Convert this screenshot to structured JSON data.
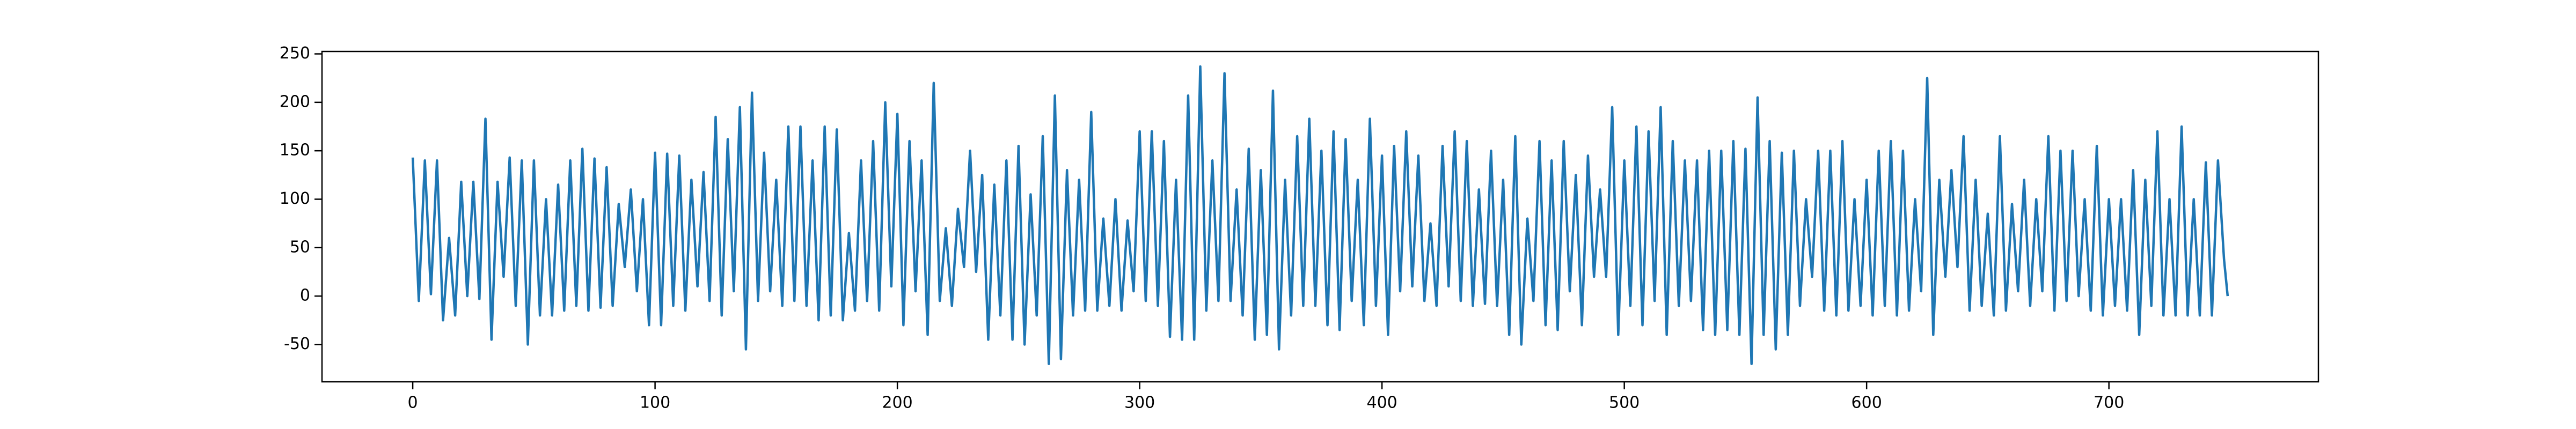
{
  "chart_data": {
    "type": "line",
    "color": "#1f77b4",
    "x": [
      0,
      2.5,
      5,
      7.5,
      10,
      12.5,
      15,
      17.5,
      20,
      22.5,
      25,
      27.5,
      30,
      32.5,
      35,
      37.5,
      40,
      42.5,
      45,
      47.5,
      50,
      52.5,
      55,
      57.5,
      60,
      62.5,
      65,
      67.5,
      70,
      72.5,
      75,
      77.5,
      80,
      82.5,
      85,
      87.5,
      90,
      92.5,
      95,
      97.5,
      100,
      102.5,
      105,
      107.5,
      110,
      112.5,
      115,
      117.5,
      120,
      122.5,
      125,
      127.5,
      130,
      132.5,
      135,
      137.5,
      140,
      142.5,
      145,
      147.5,
      150,
      152.5,
      155,
      157.5,
      160,
      162.5,
      165,
      167.5,
      170,
      172.5,
      175,
      177.5,
      180,
      182.5,
      185,
      187.5,
      190,
      192.5,
      195,
      197.5,
      200,
      202.5,
      205,
      207.5,
      210,
      212.5,
      215,
      217.5,
      220,
      222.5,
      225,
      227.5,
      230,
      232.5,
      235,
      237.5,
      240,
      242.5,
      245,
      247.5,
      250,
      252.5,
      255,
      257.5,
      260,
      262.5,
      265,
      267.5,
      270,
      272.5,
      275,
      277.5,
      280,
      282.5,
      285,
      287.5,
      290,
      292.5,
      295,
      297.5,
      300,
      302.5,
      305,
      307.5,
      310,
      312.5,
      315,
      317.5,
      320,
      322.5,
      325,
      327.5,
      330,
      332.5,
      335,
      337.5,
      340,
      342.5,
      345,
      347.5,
      350,
      352.5,
      355,
      357.5,
      360,
      362.5,
      365,
      367.5,
      370,
      372.5,
      375,
      377.5,
      380,
      382.5,
      385,
      387.5,
      390,
      392.5,
      395,
      397.5,
      400,
      402.5,
      405,
      407.5,
      410,
      412.5,
      415,
      417.5,
      420,
      422.5,
      425,
      427.5,
      430,
      432.5,
      435,
      437.5,
      440,
      442.5,
      445,
      447.5,
      450,
      452.5,
      455,
      457.5,
      460,
      462.5,
      465,
      467.5,
      470,
      472.5,
      475,
      477.5,
      480,
      482.5,
      485,
      487.5,
      490,
      492.5,
      495,
      497.5,
      500,
      502.5,
      505,
      507.5,
      510,
      512.5,
      515,
      517.5,
      520,
      522.5,
      525,
      527.5,
      530,
      532.5,
      535,
      537.5,
      540,
      542.5,
      545,
      547.5,
      550,
      552.5,
      555,
      557.5,
      560,
      562.5,
      565,
      567.5,
      570,
      572.5,
      575,
      577.5,
      580,
      582.5,
      585,
      587.5,
      590,
      592.5,
      595,
      597.5,
      600,
      602.5,
      605,
      607.5,
      610,
      612.5,
      615,
      617.5,
      620,
      622.5,
      625,
      627.5,
      630,
      632.5,
      635,
      637.5,
      640,
      642.5,
      645,
      647.5,
      650,
      652.5,
      655,
      657.5,
      660,
      662.5,
      665,
      667.5,
      670,
      672.5,
      675,
      677.5,
      680,
      682.5,
      685,
      687.5,
      690,
      692.5,
      695,
      697.5,
      700,
      702.5,
      705,
      707.5,
      710,
      712.5,
      715,
      717.5,
      720,
      722.5,
      725,
      727.5,
      730,
      732.5,
      735,
      737.5,
      740,
      742.5,
      745,
      747.5,
      749
    ],
    "values": [
      143,
      -5,
      140,
      2,
      140,
      -25,
      60,
      -20,
      118,
      0,
      118,
      -3,
      183,
      -45,
      118,
      20,
      143,
      -10,
      140,
      -50,
      140,
      -20,
      100,
      -20,
      115,
      -15,
      140,
      -10,
      152,
      -15,
      142,
      -12,
      133,
      -10,
      95,
      30,
      110,
      5,
      100,
      -30,
      148,
      -30,
      147,
      -10,
      145,
      -15,
      120,
      10,
      128,
      -5,
      185,
      -20,
      162,
      5,
      195,
      -55,
      210,
      -5,
      148,
      5,
      120,
      -10,
      175,
      -5,
      175,
      -10,
      140,
      -25,
      175,
      -20,
      172,
      -25,
      65,
      -15,
      140,
      -5,
      160,
      -15,
      200,
      10,
      188,
      -30,
      160,
      5,
      140,
      -40,
      220,
      -5,
      70,
      -10,
      90,
      30,
      150,
      25,
      125,
      -45,
      115,
      -20,
      140,
      -45,
      155,
      -50,
      105,
      -20,
      165,
      -70,
      207,
      -65,
      130,
      -20,
      120,
      -15,
      190,
      -15,
      80,
      -10,
      100,
      -15,
      78,
      5,
      170,
      -5,
      170,
      -10,
      160,
      -42,
      120,
      -45,
      207,
      -45,
      237,
      -15,
      140,
      -5,
      230,
      -5,
      110,
      -20,
      152,
      -45,
      130,
      -40,
      212,
      -55,
      120,
      -20,
      165,
      -10,
      183,
      -10,
      150,
      -30,
      170,
      -35,
      162,
      -5,
      120,
      -30,
      183,
      -10,
      145,
      -40,
      155,
      5,
      170,
      10,
      145,
      -5,
      75,
      -10,
      155,
      10,
      170,
      -5,
      160,
      -10,
      110,
      -8,
      150,
      -10,
      120,
      -40,
      165,
      -50,
      80,
      -5,
      160,
      -30,
      140,
      -35,
      160,
      5,
      125,
      -30,
      145,
      20,
      110,
      20,
      195,
      -40,
      140,
      -10,
      175,
      -30,
      170,
      -5,
      195,
      -40,
      160,
      -10,
      140,
      -5,
      140,
      -35,
      150,
      -40,
      150,
      -35,
      160,
      -40,
      152,
      -70,
      205,
      -40,
      160,
      -55,
      148,
      -40,
      150,
      -10,
      100,
      20,
      150,
      -15,
      150,
      -20,
      160,
      -15,
      100,
      -10,
      120,
      -20,
      150,
      -10,
      160,
      -20,
      150,
      -15,
      100,
      5,
      225,
      -40,
      120,
      20,
      130,
      30,
      165,
      -15,
      120,
      -10,
      85,
      -20,
      165,
      -15,
      95,
      5,
      120,
      -10,
      100,
      5,
      165,
      -15,
      150,
      -5,
      150,
      0,
      100,
      -15,
      155,
      -20,
      100,
      -10,
      100,
      -15,
      130,
      -40,
      120,
      -10,
      170,
      -20,
      100,
      -20,
      175,
      -20,
      100,
      -20,
      138,
      -20,
      140,
      38,
      0
    ],
    "xlim": [
      -37.45,
      786.45
    ],
    "xticks": [
      0,
      100,
      200,
      300,
      400,
      500,
      600,
      700
    ],
    "ylim": [
      -88.5,
      252.5
    ],
    "yticks": [
      -50,
      0,
      50,
      100,
      150,
      200,
      250
    ]
  }
}
